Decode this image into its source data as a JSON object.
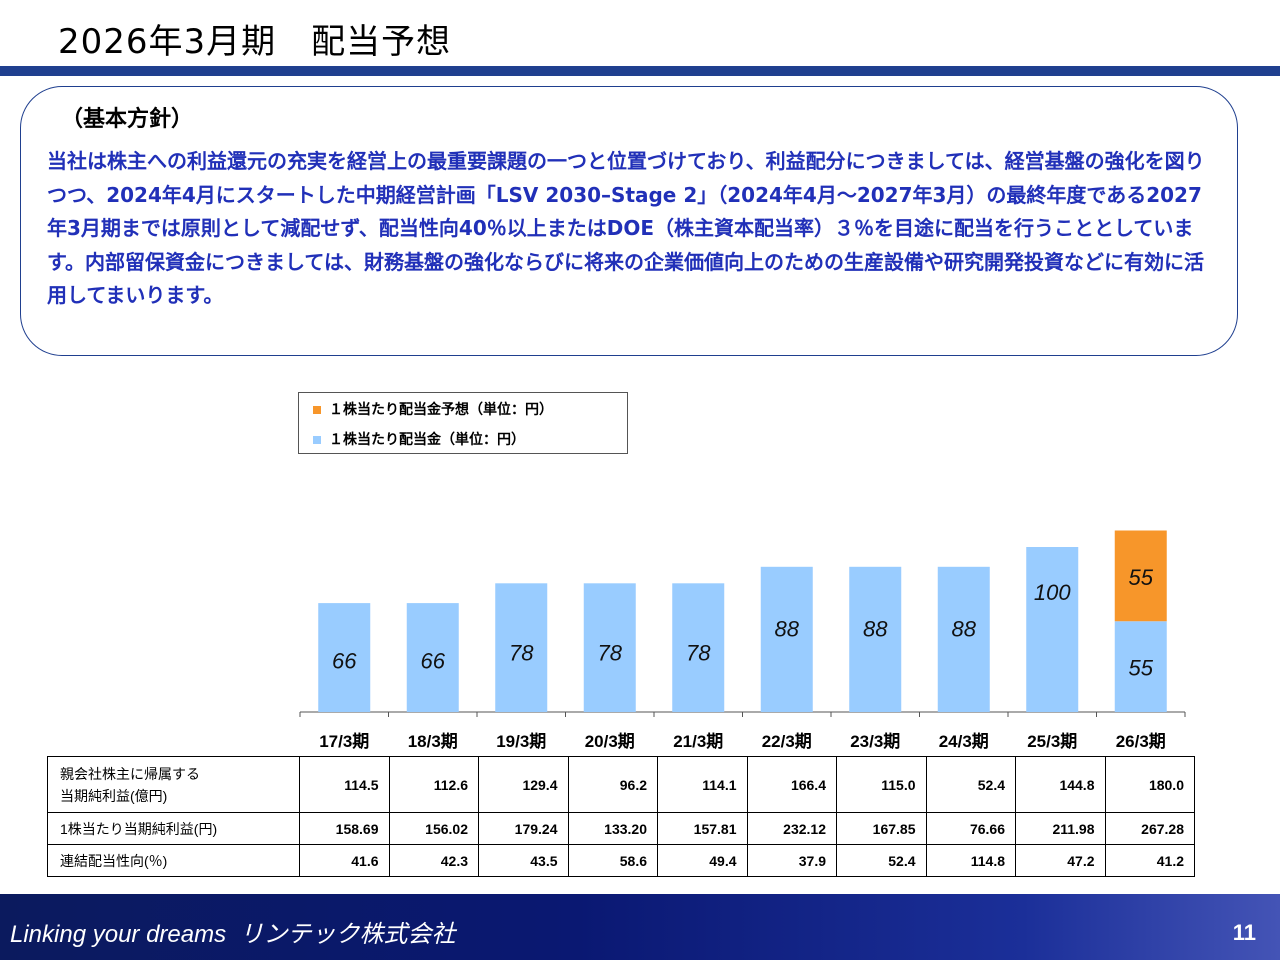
{
  "header": {
    "title": "2026年3月期　配当予想"
  },
  "policy": {
    "heading": "（基本方針）",
    "body": "当社は株主への利益還元の充実を経営上の最重要課題の一つと位置づけており、利益配分につきましては、経営基盤の強化を図りつつ、2024年4月にスタートした中期経営計画「LSV 2030–Stage 2」（2024年4月～2027年3月）の最終年度である2027年3月期までは原則として減配せず、配当性向40％以上またはDOE（株主資本配当率）３％を目途に配当を行うこととしています。内部留保資金につきましては、財務基盤の強化ならびに将来の企業価値向上のための生産設備や研究開発投資などに有効に活用してまいります。"
  },
  "colors": {
    "actual": "#99ccff",
    "forecast": "#f7962a",
    "accent": "#1f3f8f",
    "text_blue": "#2130b8"
  },
  "chart_data": {
    "type": "bar",
    "stacked": true,
    "categories": [
      "17/3期",
      "18/3期",
      "19/3期",
      "20/3期",
      "21/3期",
      "22/3期",
      "23/3期",
      "24/3期",
      "25/3期",
      "26/3期"
    ],
    "series": [
      {
        "name": "１株当たり配当金（単位：円）",
        "values": [
          66,
          66,
          78,
          78,
          78,
          88,
          88,
          88,
          100,
          55
        ]
      },
      {
        "name": "１株当たり配当金予想（単位：円）",
        "values": [
          0,
          0,
          0,
          0,
          0,
          0,
          0,
          0,
          0,
          55
        ]
      }
    ],
    "legend_position": "top-left",
    "grid": false,
    "ylim": [
      0,
      110
    ]
  },
  "table": {
    "rows": [
      {
        "label_lines": [
          "親会社株主に帰属する",
          "当期純利益(億円)"
        ],
        "values": [
          "114.5",
          "112.6",
          "129.4",
          "96.2",
          "114.1",
          "166.4",
          "115.0",
          "52.4",
          "144.8",
          "180.0"
        ]
      },
      {
        "label_lines": [
          "1株当たり当期純利益(円)"
        ],
        "values": [
          "158.69",
          "156.02",
          "179.24",
          "133.20",
          "157.81",
          "232.12",
          "167.85",
          "76.66",
          "211.98",
          "267.28"
        ]
      },
      {
        "label_lines": [
          "連結配当性向(％)"
        ],
        "values": [
          "41.6",
          "42.3",
          "43.5",
          "58.6",
          "49.4",
          "37.9",
          "52.4",
          "114.8",
          "47.2",
          "41.2"
        ]
      }
    ]
  },
  "footer": {
    "brand": "Linking your dreams  リンテック株式会社",
    "page": "11"
  }
}
